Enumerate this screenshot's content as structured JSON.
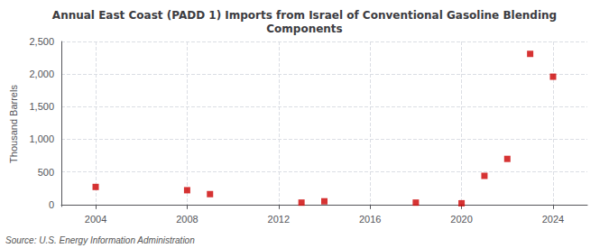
{
  "chart_data": {
    "type": "scatter",
    "title": "Annual East Coast (PADD 1) Imports from Israel of Conventional Gasoline Blending\nComponents",
    "ylabel": "Thousand Barrels",
    "annotations": [
      "Source: U.S. Energy Information Administration"
    ],
    "x": [
      2004,
      2008,
      2009,
      2013,
      2014,
      2018,
      2020,
      2021,
      2022,
      2023,
      2024
    ],
    "values": [
      270,
      220,
      160,
      30,
      50,
      30,
      20,
      440,
      700,
      2310,
      1960
    ],
    "color": "#cc0000",
    "marker": "square",
    "xlim": [
      2002.5,
      2025.5
    ],
    "xticks": [
      2004,
      2008,
      2012,
      2016,
      2020,
      2024
    ],
    "ylim": [
      -30,
      2500
    ],
    "yticks": [
      0,
      500,
      {
        "value": 1000,
        "label": "1,000"
      },
      {
        "value": 1500,
        "label": "1,500"
      },
      {
        "value": 2000,
        "label": "2,000"
      },
      {
        "value": 2500,
        "label": "2,500"
      }
    ],
    "grid": true
  }
}
